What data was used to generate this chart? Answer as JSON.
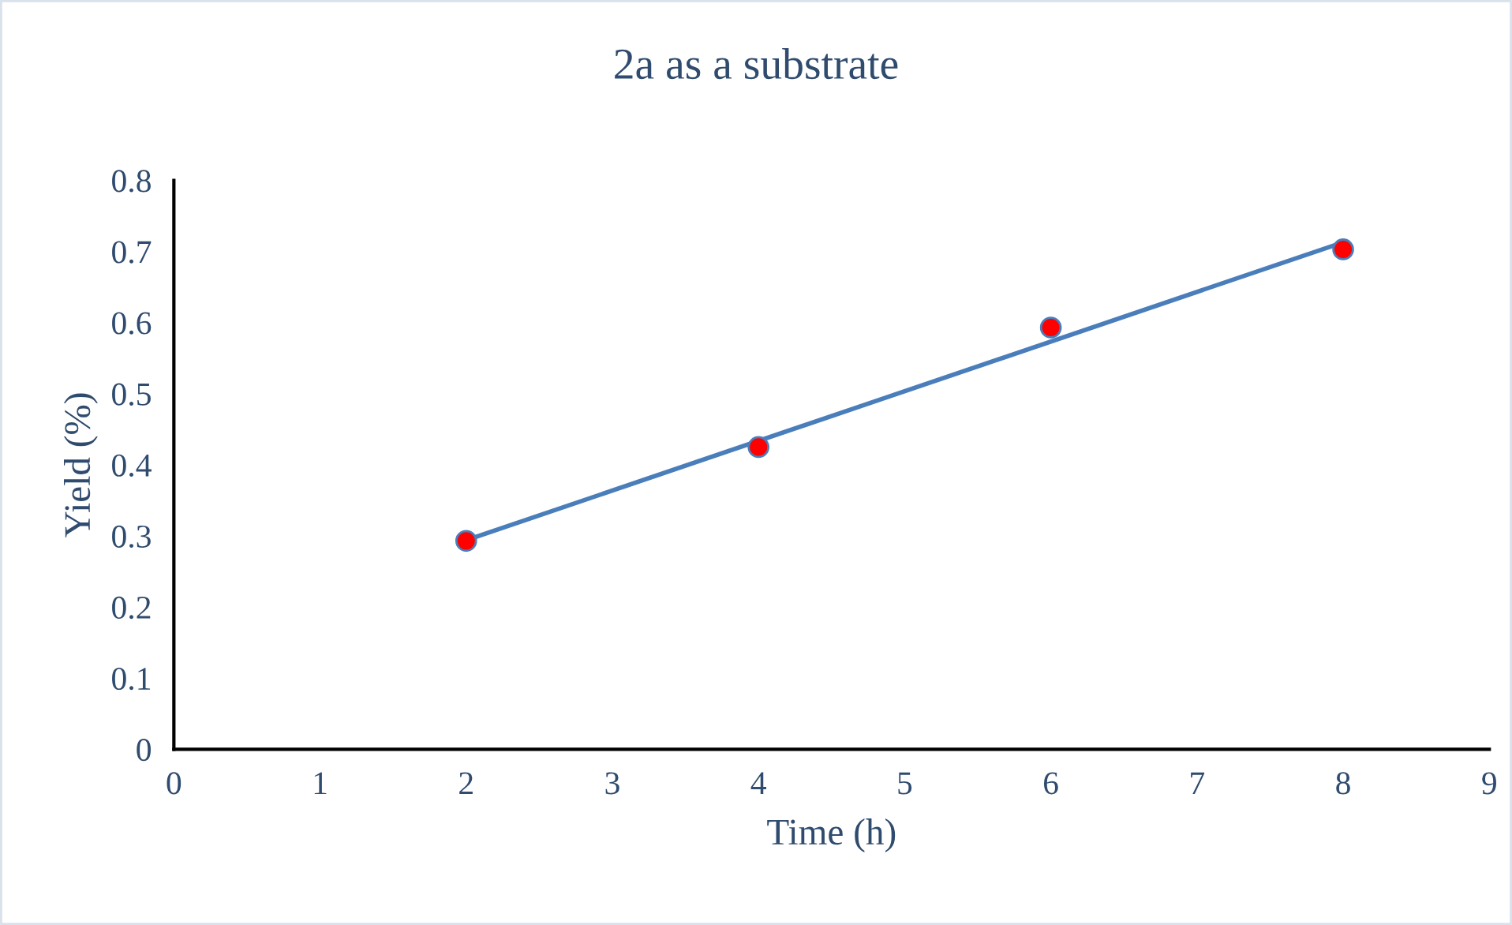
{
  "chart_data": {
    "type": "scatter",
    "title": "2a as a substrate",
    "xlabel": "Time (h)",
    "ylabel": "Yield (%)",
    "xlim": [
      0,
      9
    ],
    "xticks": [
      0,
      1,
      2,
      3,
      4,
      5,
      6,
      7,
      8,
      9
    ],
    "ylim": [
      0,
      0.8
    ],
    "yticks": [
      0,
      0.1,
      0.2,
      0.3,
      0.4,
      0.5,
      0.6,
      0.7,
      0.8
    ],
    "grid": false,
    "legend": false,
    "marker": "circle",
    "series": [
      {
        "color": "#ff0000",
        "x": [
          2,
          4,
          6,
          8
        ],
        "values": [
          0.293,
          0.425,
          0.593,
          0.703
        ]
      },
      {
        "type": "line",
        "color": "#4a7ebb",
        "line_style": "solid",
        "marker": "none",
        "x": [
          2,
          8
        ],
        "values": [
          0.294,
          0.713
        ]
      }
    ]
  }
}
